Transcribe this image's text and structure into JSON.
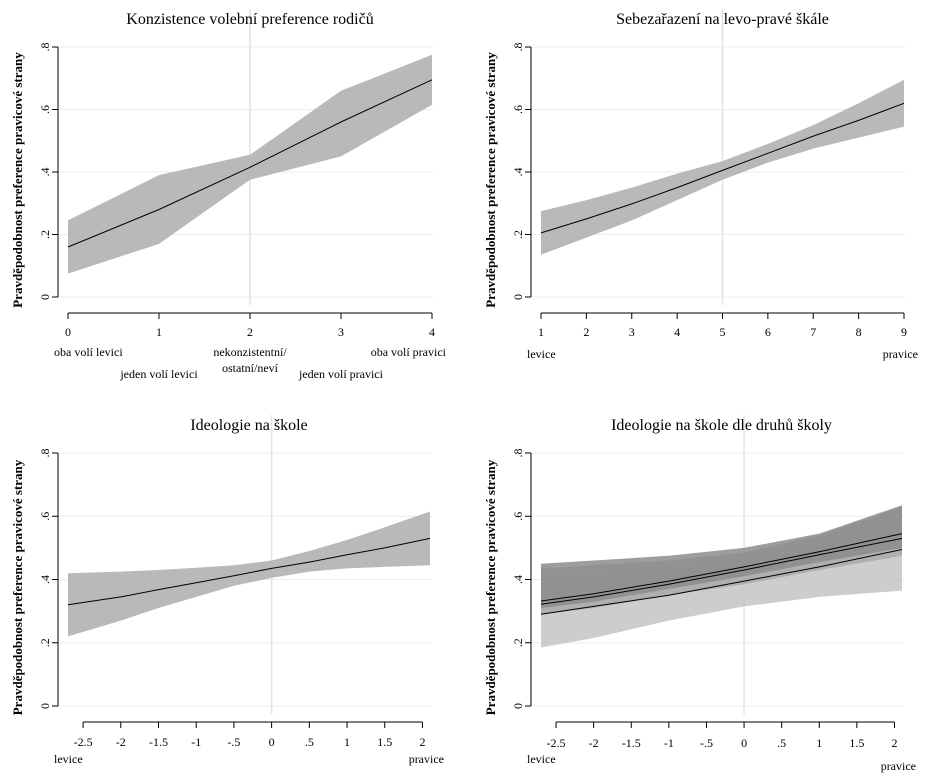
{
  "chart_data": [
    {
      "id": "p1",
      "type": "line",
      "title": "Konzistence volební preference rodičů",
      "ylabel": "Pravděpodobnost preference pravicové strany",
      "ylim": [
        0,
        0.8
      ],
      "yticks": [
        0,
        0.2,
        0.4,
        0.6,
        0.8
      ],
      "ytick_labels": [
        "0",
        ".2",
        ".4",
        ".6",
        ".8"
      ],
      "xlim": [
        0,
        4
      ],
      "xticks": [
        0,
        1,
        2,
        3,
        4
      ],
      "xtick_labels": [
        "0",
        "1",
        "2",
        "3",
        "4"
      ],
      "ref_x": 2,
      "x_notes": [
        {
          "x": 0,
          "row": 1,
          "lines": [
            "oba volí levici"
          ]
        },
        {
          "x": 1,
          "row": 2,
          "lines": [
            "jeden volí levici"
          ]
        },
        {
          "x": 2,
          "row": 1,
          "lines": [
            "nekonzistentní/",
            "ostatní/neví"
          ]
        },
        {
          "x": 3,
          "row": 2,
          "lines": [
            "jeden volí pravici"
          ]
        },
        {
          "x": 4,
          "row": 1,
          "lines": [
            "oba volí pravici"
          ]
        }
      ],
      "series": [
        {
          "x": [
            0,
            1,
            2,
            3,
            4
          ],
          "y": [
            0.16,
            0.28,
            0.415,
            0.56,
            0.695
          ],
          "lower": [
            0.075,
            0.17,
            0.375,
            0.45,
            0.615
          ],
          "upper": [
            0.245,
            0.39,
            0.455,
            0.66,
            0.775
          ]
        }
      ]
    },
    {
      "id": "p2",
      "type": "line",
      "title": "Sebezařazení na levo-pravé škále",
      "ylabel": "Pravděpodobnost preference pravicové strany",
      "ylim": [
        0,
        0.8
      ],
      "yticks": [
        0,
        0.2,
        0.4,
        0.6,
        0.8
      ],
      "ytick_labels": [
        "0",
        ".2",
        ".4",
        ".6",
        ".8"
      ],
      "xlim": [
        1,
        9
      ],
      "xticks": [
        1,
        2,
        3,
        4,
        5,
        6,
        7,
        8,
        9
      ],
      "xtick_labels": [
        "1",
        "2",
        "3",
        "4",
        "5",
        "6",
        "7",
        "8",
        "9"
      ],
      "ref_x": 5,
      "x_notes": [
        {
          "x": 1,
          "row": 1,
          "lines": [
            "levice"
          ]
        },
        {
          "x": 9,
          "row": 1,
          "lines": [
            "pravice"
          ]
        }
      ],
      "series": [
        {
          "x": [
            1,
            2,
            3,
            4,
            5,
            6,
            7,
            8,
            9
          ],
          "y": [
            0.205,
            0.25,
            0.298,
            0.35,
            0.405,
            0.46,
            0.515,
            0.565,
            0.62
          ],
          "lower": [
            0.135,
            0.19,
            0.245,
            0.31,
            0.375,
            0.43,
            0.475,
            0.51,
            0.545
          ],
          "upper": [
            0.275,
            0.31,
            0.35,
            0.395,
            0.435,
            0.49,
            0.55,
            0.62,
            0.695
          ]
        }
      ]
    },
    {
      "id": "p3",
      "type": "line",
      "title": "Ideologie na škole",
      "ylabel": "Pravděpodobnost preference pravicové strany",
      "ylim": [
        0,
        0.8
      ],
      "yticks": [
        0,
        0.2,
        0.4,
        0.6,
        0.8
      ],
      "ytick_labels": [
        "0",
        ".2",
        ".4",
        ".6",
        ".8"
      ],
      "xlim": [
        -2.7,
        2.1
      ],
      "xticks": [
        -2.5,
        -2,
        -1.5,
        -1,
        -0.5,
        0,
        0.5,
        1,
        1.5,
        2
      ],
      "xtick_labels": [
        "-2.5",
        "-2",
        "-1.5",
        "-1",
        "-.5",
        "0",
        ".5",
        "1",
        "1.5",
        "2"
      ],
      "ref_x": 0,
      "x_notes": [
        {
          "x": -2.7,
          "row": 1,
          "lines": [
            "levice"
          ]
        },
        {
          "x": 2.1,
          "row": 1,
          "lines": [
            "pravice"
          ]
        }
      ],
      "series": [
        {
          "x": [
            -2.7,
            -2,
            -1.5,
            -1,
            -0.5,
            0,
            0.5,
            1,
            1.5,
            2.1
          ],
          "y": [
            0.32,
            0.345,
            0.368,
            0.39,
            0.412,
            0.435,
            0.455,
            0.478,
            0.5,
            0.53
          ],
          "lower": [
            0.22,
            0.27,
            0.31,
            0.345,
            0.38,
            0.405,
            0.425,
            0.435,
            0.44,
            0.445
          ],
          "upper": [
            0.42,
            0.425,
            0.43,
            0.437,
            0.445,
            0.46,
            0.49,
            0.525,
            0.565,
            0.615
          ]
        }
      ]
    },
    {
      "id": "p4",
      "type": "line",
      "title": "Ideologie na škole dle druhů školy",
      "ylabel": "Pravděpodobnost preference pravicové strany",
      "ylim": [
        0,
        0.8
      ],
      "yticks": [
        0,
        0.2,
        0.4,
        0.6,
        0.8
      ],
      "ytick_labels": [
        "0",
        ".2",
        ".4",
        ".6",
        ".8"
      ],
      "xlim": [
        -2.7,
        2.1
      ],
      "xticks": [
        -2.5,
        -2,
        -1.5,
        -1,
        -0.5,
        0,
        0.5,
        1,
        1.5,
        2
      ],
      "xtick_labels": [
        "-2.5",
        "-2",
        "-1.5",
        "-1",
        "-.5",
        "0",
        ".5",
        "1",
        "1.5",
        "2"
      ],
      "ref_x": 0,
      "x_notes": [
        {
          "x": -2.7,
          "row": 1,
          "lines": [
            "levice"
          ]
        },
        {
          "x": 2.1,
          "row": 2,
          "lines": [
            "pravice"
          ]
        }
      ],
      "series": [
        {
          "x": [
            -2.7,
            -2,
            -1,
            0,
            1,
            2.1
          ],
          "y": [
            0.29,
            0.315,
            0.35,
            0.395,
            0.44,
            0.495
          ],
          "lower": [
            0.185,
            0.215,
            0.27,
            0.315,
            0.345,
            0.365
          ],
          "upper": [
            0.395,
            0.415,
            0.43,
            0.47,
            0.53,
            0.63
          ],
          "fill": "#c4c4c4"
        },
        {
          "x": [
            -2.7,
            -2,
            -1,
            0,
            1,
            2.1
          ],
          "y": [
            0.322,
            0.345,
            0.385,
            0.43,
            0.478,
            0.53
          ],
          "lower": [
            0.29,
            0.31,
            0.35,
            0.385,
            0.43,
            0.475
          ],
          "upper": [
            0.435,
            0.445,
            0.46,
            0.485,
            0.54,
            0.63
          ],
          "fill": "#a9a9a9"
        },
        {
          "x": [
            -2.7,
            -2,
            -1,
            0,
            1,
            2.1
          ],
          "y": [
            0.332,
            0.355,
            0.395,
            0.44,
            0.488,
            0.545
          ],
          "lower": [
            0.31,
            0.33,
            0.37,
            0.41,
            0.455,
            0.5
          ],
          "upper": [
            0.45,
            0.46,
            0.475,
            0.5,
            0.545,
            0.635
          ],
          "fill": "#8c8c8c"
        }
      ]
    }
  ],
  "colors": {
    "band": "#b9b9b9",
    "line": "#000000",
    "grid": "#ececec",
    "refline": "#e2e2e2"
  }
}
